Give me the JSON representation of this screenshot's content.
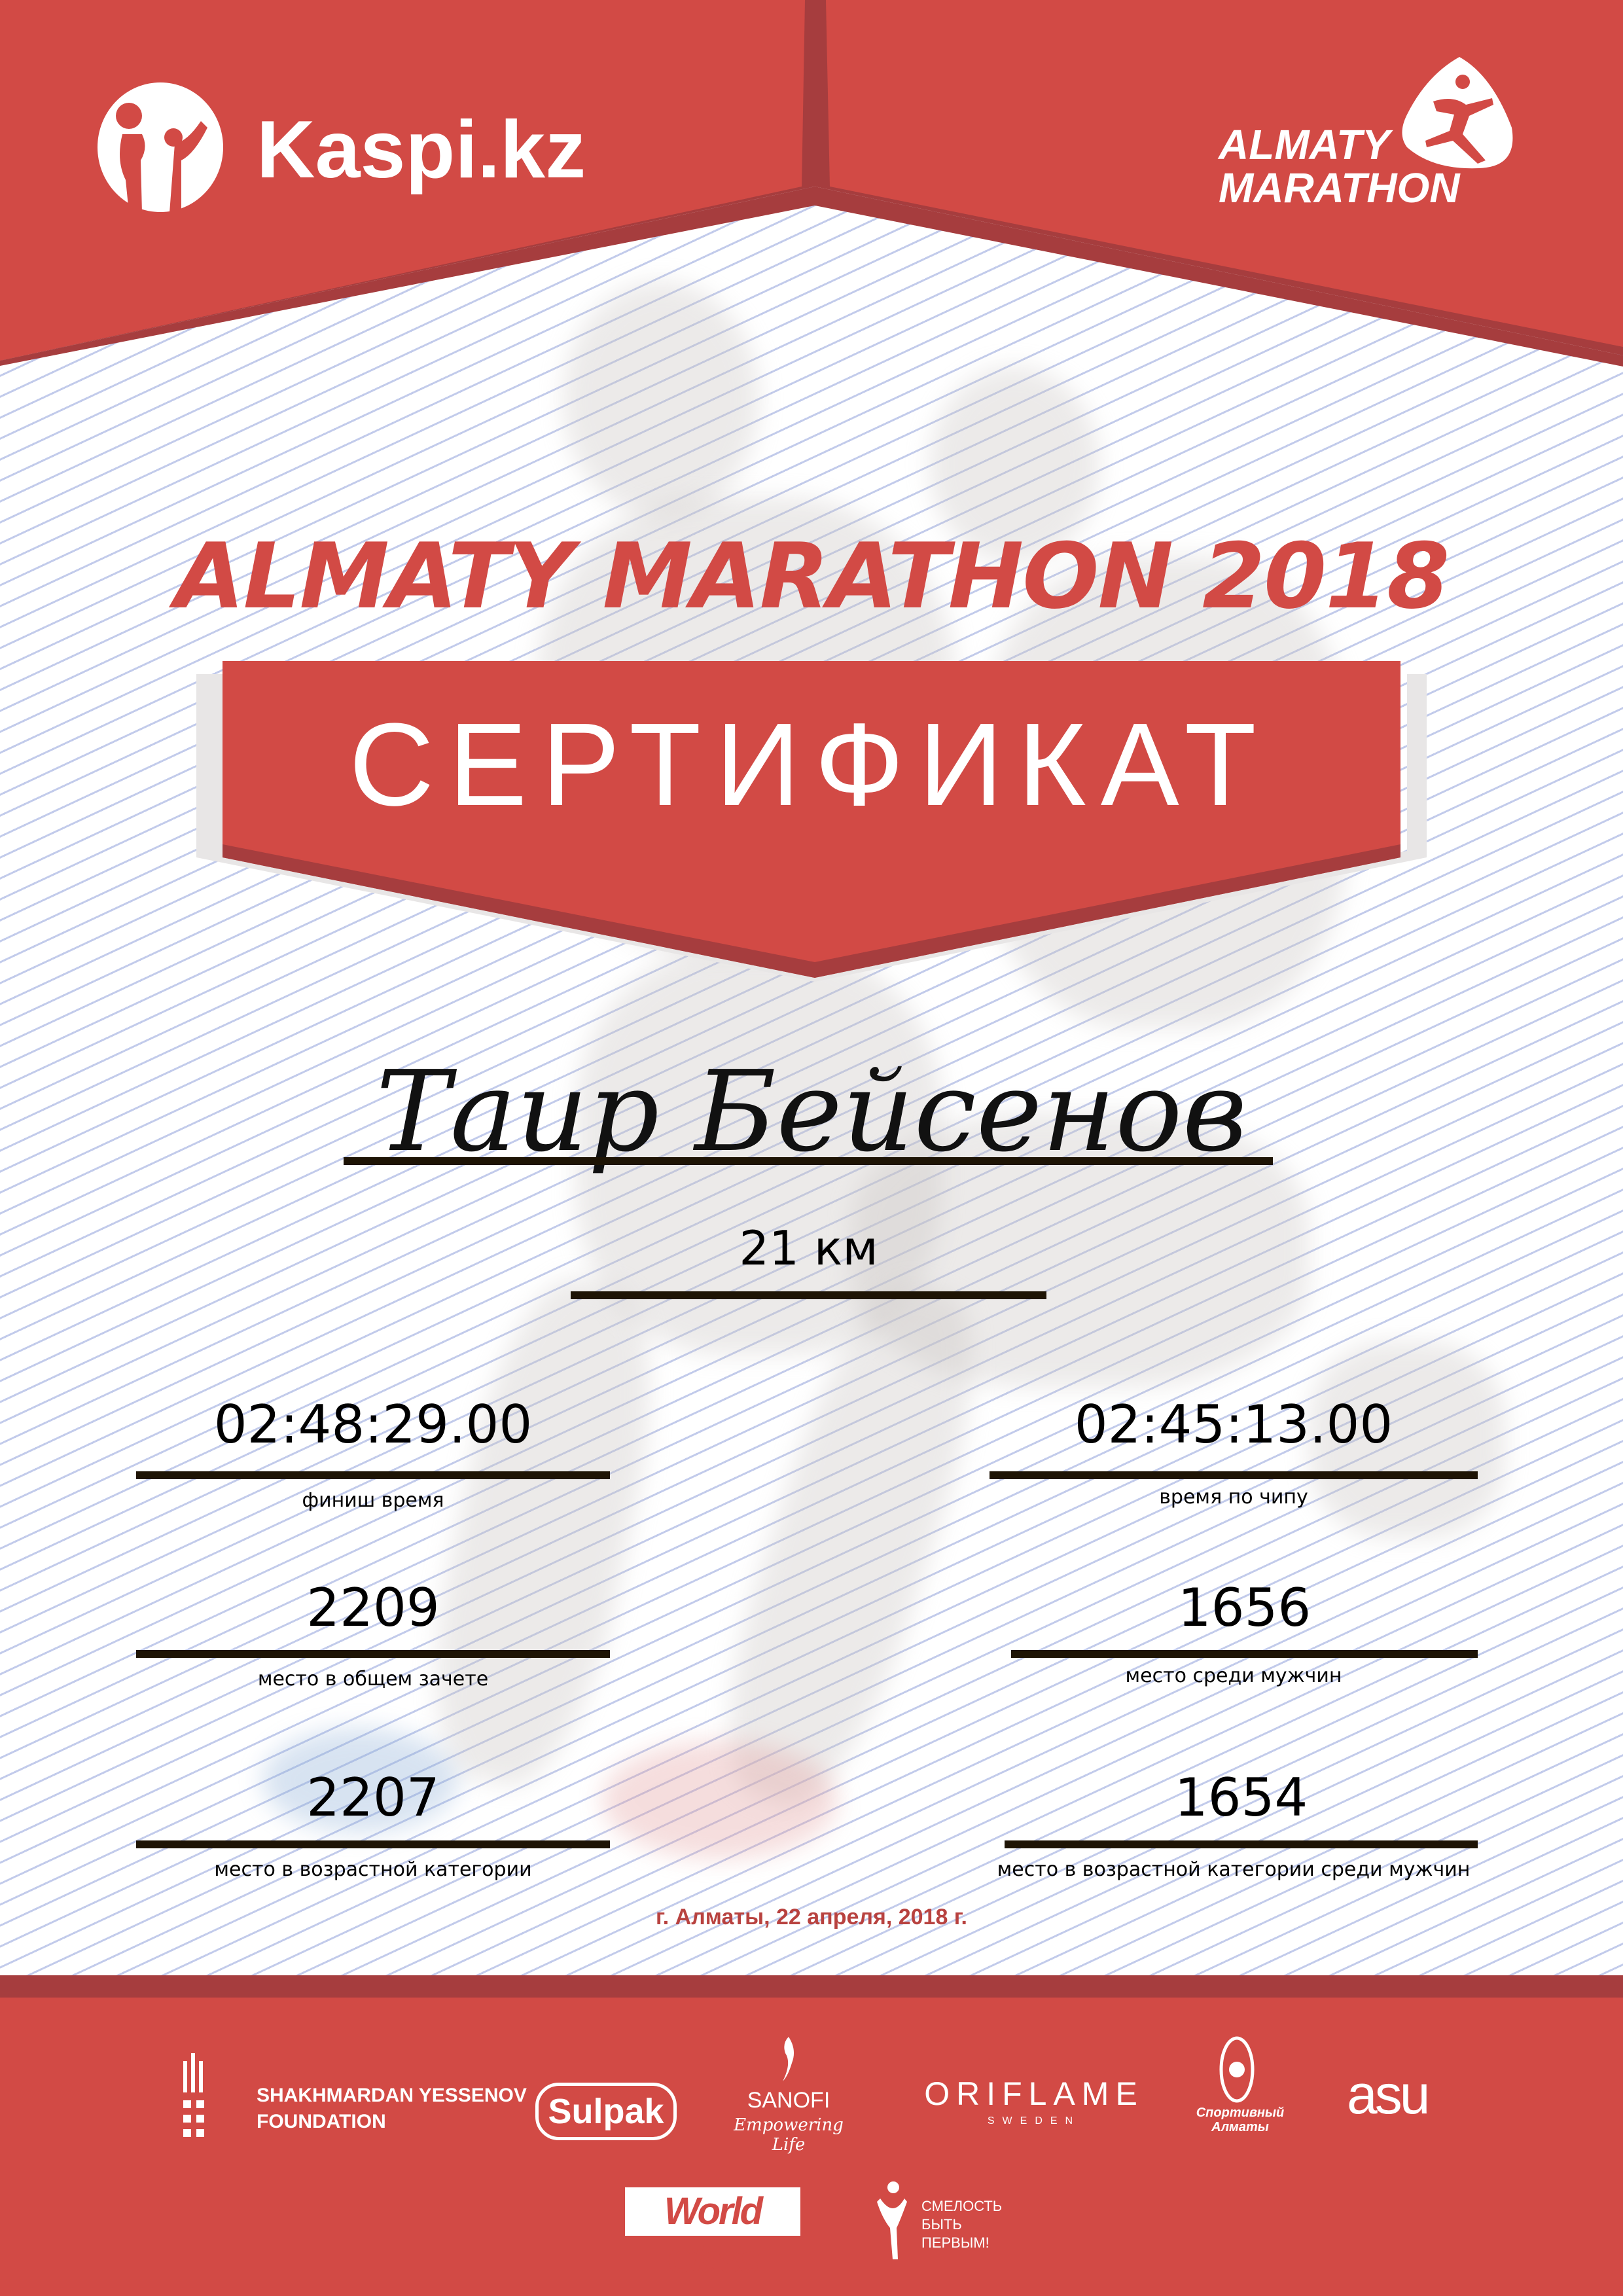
{
  "colors": {
    "brand_red": "#d24a45",
    "dark_red": "#a63d3e",
    "line": "#1e1405"
  },
  "header": {
    "left_logo": "Kaspi.kz",
    "right_logo": {
      "line1": "ALMATY",
      "line2": "MARATHON"
    }
  },
  "title": "ALMATY MARATHON 2018",
  "banner": "СЕРТИФИКАТ",
  "participant": {
    "name": "Таир Бейсенов",
    "distance": "21 км"
  },
  "results": {
    "left": [
      {
        "value": "02:48:29.00",
        "label": "финиш время"
      },
      {
        "value": "2209",
        "label": "место в общем зачете"
      },
      {
        "value": "2207",
        "label": "место в возрастной категории"
      }
    ],
    "right": [
      {
        "value": "02:45:13.00",
        "label": "время по чипу"
      },
      {
        "value": "1656",
        "label": "место среди мужчин"
      },
      {
        "value": "1654",
        "label": "место в возрастной категории среди мужчин"
      }
    ]
  },
  "date": "г. Алматы, 22 апреля, 2018 г.",
  "sponsors": {
    "yessenov": {
      "line1": "SHAKHMARDAN YESSENOV",
      "line2": "FOUNDATION"
    },
    "sulpak": "Sulpak",
    "sanofi": {
      "name": "SANOFI",
      "tagline": "Empowering Life"
    },
    "oriflame": {
      "name": "ORIFLAME",
      "sub": "SWEDEN"
    },
    "sport_almaty": {
      "line1": "Спортивный",
      "line2": "Алматы"
    },
    "asu": "asu",
    "worldclass": "World Class",
    "smelost": {
      "line1": "СМЕЛОСТЬ",
      "line2": "БЫТЬ",
      "line3": "ПЕРВЫМ!"
    }
  }
}
